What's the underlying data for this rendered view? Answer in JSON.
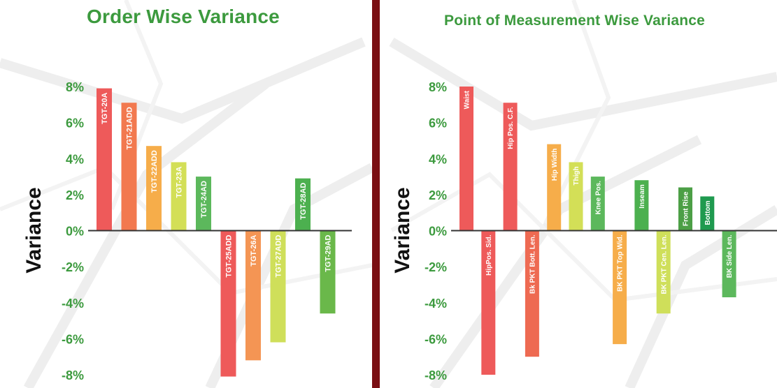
{
  "colors": {
    "title": "#3c9a3e",
    "tick": "#3c9a3e",
    "divider": "#7a0f13",
    "axis_title": "#111111",
    "baseline": "#333333"
  },
  "chart_data": [
    {
      "type": "bar",
      "title": "Order Wise Variance",
      "xlabel": "",
      "ylabel": "Variance",
      "ylim": [
        -8,
        8
      ],
      "ytick_values": [
        8,
        6,
        4,
        2,
        0,
        -2,
        -4,
        -6,
        -8
      ],
      "ytick_labels": [
        "8%",
        "6%",
        "4%",
        "2%",
        "0%",
        "-2%",
        "-4%",
        "-6%",
        "-8%"
      ],
      "grid": false,
      "categories": [
        "TGT-20A",
        "TGT-21ADD",
        "TGT-22ADD",
        "TGT-23A",
        "TGT-24AD",
        "TGT-25ADD",
        "TGT-26A",
        "TGT-27ADD",
        "TGT-28AD",
        "TGT-29AD"
      ],
      "values": [
        7.9,
        7.1,
        4.7,
        3.8,
        3.0,
        -8.1,
        -7.2,
        -6.2,
        2.9,
        -4.6
      ],
      "bar_colors": [
        "#ee5a5a",
        "#f2794f",
        "#f6ad4a",
        "#d3df57",
        "#5cb85c",
        "#ee5a5a",
        "#f49554",
        "#cfdf5a",
        "#4cb04f",
        "#6ab84a"
      ]
    },
    {
      "type": "bar",
      "title": "Point of Measurement Wise Variance",
      "xlabel": "",
      "ylabel": "Variance",
      "ylim": [
        -8,
        8
      ],
      "ytick_values": [
        8,
        6,
        4,
        2,
        0,
        -2,
        -4,
        -6,
        -8
      ],
      "ytick_labels": [
        "8%",
        "6%",
        "4%",
        "2%",
        "0%",
        "-2%",
        "-4%",
        "-6%",
        "-8%"
      ],
      "grid": false,
      "categories": [
        "Waist",
        "HipPos. Sid.",
        "Hip Pos. C.F.",
        "Bk PKT Bott. Len.",
        "Hip Width",
        "Thigh",
        "Knee Pos.",
        "BK PKT Top Wid.",
        "Inseam",
        "BK PKT Cen. Len.",
        "Front Rise",
        "Bottom",
        "BK Side Len."
      ],
      "values": [
        8.0,
        -8.0,
        7.1,
        -7.0,
        4.8,
        3.8,
        3.0,
        -6.3,
        2.8,
        -4.6,
        2.4,
        1.9,
        -3.7
      ],
      "bar_colors": [
        "#ee5a5a",
        "#ee5a5a",
        "#ee5a5a",
        "#ee6a52",
        "#f6ad4a",
        "#d3df57",
        "#5cb85c",
        "#f6ad4a",
        "#4cb04f",
        "#cfdf5a",
        "#4c9f46",
        "#1f9a4f",
        "#5cb85c"
      ]
    }
  ]
}
